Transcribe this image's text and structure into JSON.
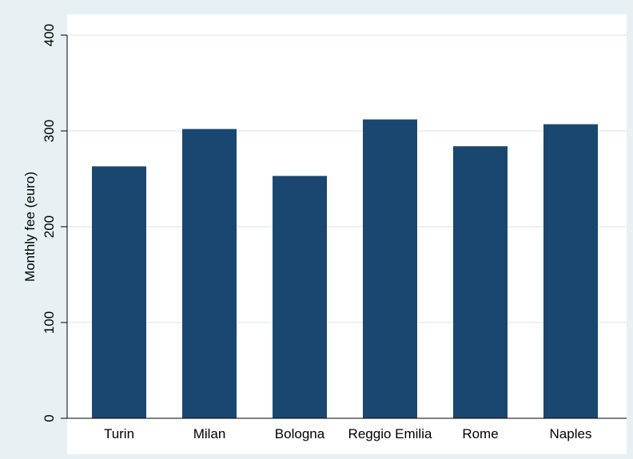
{
  "chart_data": {
    "type": "bar",
    "categories": [
      "Turin",
      "Milan",
      "Bologna",
      "Reggio Emilia",
      "Rome",
      "Naples"
    ],
    "values": [
      263,
      302,
      253,
      312,
      284,
      307
    ],
    "title": "",
    "xlabel": "",
    "ylabel": "Monthly fee (euro)",
    "ylim": [
      0,
      400
    ],
    "yticks": [
      0,
      100,
      200,
      300,
      400
    ],
    "ytick_labels": [
      "0",
      "100",
      "200",
      "300",
      "400"
    ],
    "grid": true,
    "colors": {
      "bar": "#1a476f",
      "plot_background": "#ffffff",
      "outer_background": "#e8f0f3",
      "gridline": "#e6eef1",
      "axis": "#000000"
    }
  }
}
